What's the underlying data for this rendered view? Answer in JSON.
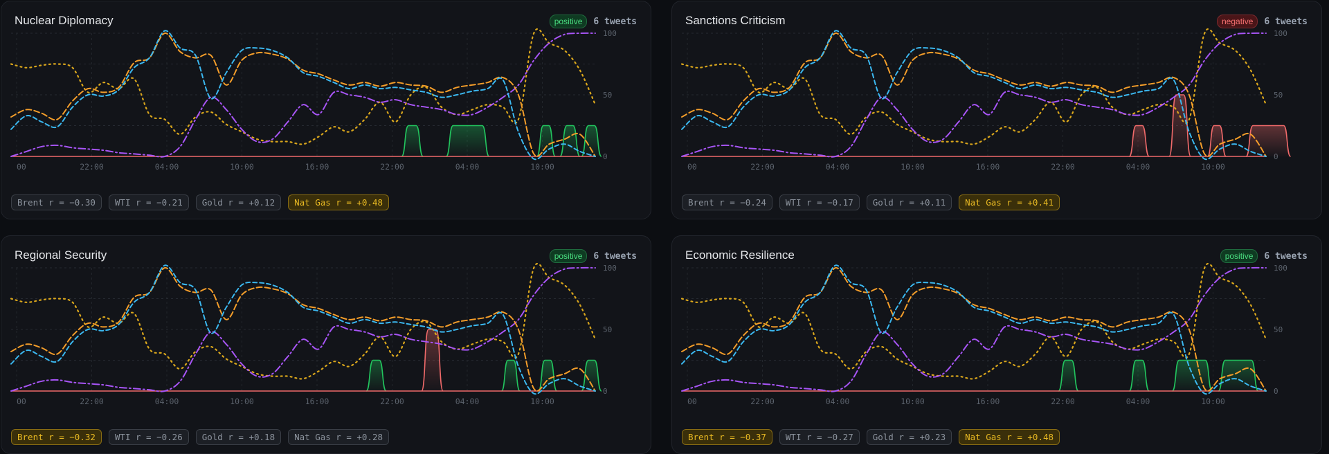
{
  "colors": {
    "brent": "#f59e2a",
    "wti": "#3bb8f0",
    "gold": "#d9a61c",
    "natgas": "#a855f7",
    "tweet_positive": "#22c55e",
    "tweet_negative": "#f06a6a",
    "positive_badge_bg": "#0f3b22",
    "positive_badge_fg": "#4ade80",
    "negative_badge_bg": "#4a1518",
    "negative_badge_fg": "#f87171"
  },
  "cards": [
    {
      "title": "Nuclear Diplomacy",
      "sentiment": "positive",
      "tweets": "6 tweets",
      "correlations": [
        {
          "label": "Brent r = −0.30",
          "highlight": false
        },
        {
          "label": "WTI r = −0.21",
          "highlight": false
        },
        {
          "label": "Gold r = +0.12",
          "highlight": false
        },
        {
          "label": "Nat Gas r = +0.48",
          "highlight": true
        }
      ],
      "chart_data": {
        "type": "line",
        "x_ticks": [
          "00",
          "22:00",
          "04:00",
          "10:00",
          "16:00",
          "22:00",
          "04:00",
          "10:00"
        ],
        "y_ticks": [
          "100",
          "50",
          "0"
        ],
        "ylim": [
          0,
          100
        ],
        "tweet_pulses": [
          {
            "start": 25.4,
            "width": 1.4,
            "height": 25,
            "sentiment": "positive"
          },
          {
            "start": 28.3,
            "width": 2.8,
            "height": 25,
            "sentiment": "positive"
          },
          {
            "start": 34.2,
            "width": 1.2,
            "height": 25,
            "sentiment": "positive"
          },
          {
            "start": 35.7,
            "width": 1.3,
            "height": 25,
            "sentiment": "positive"
          },
          {
            "start": 37.1,
            "width": 1.3,
            "height": 25,
            "sentiment": "positive"
          }
        ]
      }
    },
    {
      "title": "Sanctions Criticism",
      "sentiment": "negative",
      "tweets": "6 tweets",
      "correlations": [
        {
          "label": "Brent r = −0.24",
          "highlight": false
        },
        {
          "label": "WTI r = −0.17",
          "highlight": false
        },
        {
          "label": "Gold r = +0.11",
          "highlight": false
        },
        {
          "label": "Nat Gas r = +0.41",
          "highlight": true
        }
      ],
      "chart_data": {
        "type": "line",
        "x_ticks": [
          "00",
          "22:00",
          "04:00",
          "10:00",
          "16:00",
          "22:00",
          "04:00",
          "10:00"
        ],
        "y_ticks": [
          "100",
          "50",
          "0"
        ],
        "ylim": [
          0,
          100
        ],
        "tweet_pulses": [
          {
            "start": 29.1,
            "width": 1.3,
            "height": 25,
            "sentiment": "negative"
          },
          {
            "start": 31.7,
            "width": 1.4,
            "height": 50,
            "sentiment": "negative"
          },
          {
            "start": 34.2,
            "width": 1.2,
            "height": 25,
            "sentiment": "negative"
          },
          {
            "start": 36.7,
            "width": 2.9,
            "height": 25,
            "sentiment": "negative"
          }
        ]
      }
    },
    {
      "title": "Regional Security",
      "sentiment": "positive",
      "tweets": "6 tweets",
      "correlations": [
        {
          "label": "Brent r = −0.32",
          "highlight": true
        },
        {
          "label": "WTI r = −0.26",
          "highlight": false
        },
        {
          "label": "Gold r = +0.18",
          "highlight": false
        },
        {
          "label": "Nat Gas r = +0.28",
          "highlight": false
        }
      ],
      "chart_data": {
        "type": "line",
        "x_ticks": [
          "00",
          "22:00",
          "04:00",
          "10:00",
          "16:00",
          "22:00",
          "04:00",
          "10:00"
        ],
        "y_ticks": [
          "100",
          "50",
          "0"
        ],
        "ylim": [
          0,
          100
        ],
        "tweet_pulses": [
          {
            "start": 23.1,
            "width": 1.3,
            "height": 25,
            "sentiment": "positive"
          },
          {
            "start": 26.7,
            "width": 1.4,
            "height": 50,
            "sentiment": "negative"
          },
          {
            "start": 31.9,
            "width": 1.2,
            "height": 25,
            "sentiment": "positive"
          },
          {
            "start": 34.3,
            "width": 1.2,
            "height": 25,
            "sentiment": "positive"
          },
          {
            "start": 37.1,
            "width": 1.3,
            "height": 25,
            "sentiment": "positive"
          }
        ]
      }
    },
    {
      "title": "Economic Resilience",
      "sentiment": "positive",
      "tweets": "6 tweets",
      "correlations": [
        {
          "label": "Brent r = −0.37",
          "highlight": true
        },
        {
          "label": "WTI r = −0.27",
          "highlight": false
        },
        {
          "label": "Gold r = +0.23",
          "highlight": false
        },
        {
          "label": "Nat Gas r = +0.48",
          "highlight": true
        }
      ],
      "chart_data": {
        "type": "line",
        "x_ticks": [
          "00",
          "22:00",
          "04:00",
          "10:00",
          "16:00",
          "22:00",
          "04:00",
          "10:00"
        ],
        "y_ticks": [
          "100",
          "50",
          "0"
        ],
        "ylim": [
          0,
          100
        ],
        "tweet_pulses": [
          {
            "start": 24.5,
            "width": 1.3,
            "height": 25,
            "sentiment": "positive"
          },
          {
            "start": 29.1,
            "width": 1.3,
            "height": 25,
            "sentiment": "positive"
          },
          {
            "start": 31.9,
            "width": 2.6,
            "height": 25,
            "sentiment": "positive"
          },
          {
            "start": 34.9,
            "width": 2.6,
            "height": 25,
            "sentiment": "positive"
          }
        ]
      }
    }
  ],
  "series": {
    "hours": [
      0,
      1,
      2,
      3,
      4,
      5,
      6,
      7,
      8,
      9,
      10,
      11,
      12,
      13,
      14,
      15,
      16,
      17,
      18,
      19,
      20,
      21,
      22,
      23,
      24,
      25,
      26,
      27,
      28,
      29,
      30,
      31,
      32,
      33,
      34,
      35,
      36,
      37,
      38
    ],
    "brent": [
      32,
      38,
      35,
      30,
      45,
      55,
      52,
      56,
      76,
      80,
      100,
      85,
      80,
      82,
      58,
      78,
      84,
      83,
      79,
      70,
      67,
      62,
      58,
      60,
      57,
      60,
      58,
      57,
      52,
      56,
      58,
      60,
      64,
      50,
      2,
      10,
      14,
      18,
      0
    ],
    "wti": [
      22,
      33,
      28,
      24,
      40,
      50,
      49,
      54,
      72,
      80,
      102,
      88,
      82,
      47,
      68,
      86,
      88,
      86,
      80,
      68,
      65,
      60,
      55,
      58,
      55,
      56,
      54,
      52,
      48,
      50,
      53,
      55,
      62,
      20,
      -2,
      6,
      10,
      4,
      0
    ],
    "gold": [
      75,
      72,
      74,
      75,
      72,
      52,
      60,
      55,
      63,
      34,
      30,
      18,
      32,
      36,
      26,
      20,
      14,
      12,
      12,
      10,
      16,
      24,
      20,
      30,
      44,
      28,
      50,
      56,
      40,
      34,
      38,
      42,
      40,
      30,
      100,
      92,
      86,
      70,
      42
    ],
    "natgas": [
      0,
      4,
      8,
      9,
      7,
      6,
      5,
      3,
      2,
      1,
      0,
      8,
      30,
      48,
      38,
      22,
      12,
      14,
      28,
      42,
      34,
      52,
      50,
      48,
      44,
      46,
      42,
      40,
      38,
      34,
      34,
      40,
      48,
      58,
      78,
      92,
      99,
      100,
      100
    ]
  }
}
